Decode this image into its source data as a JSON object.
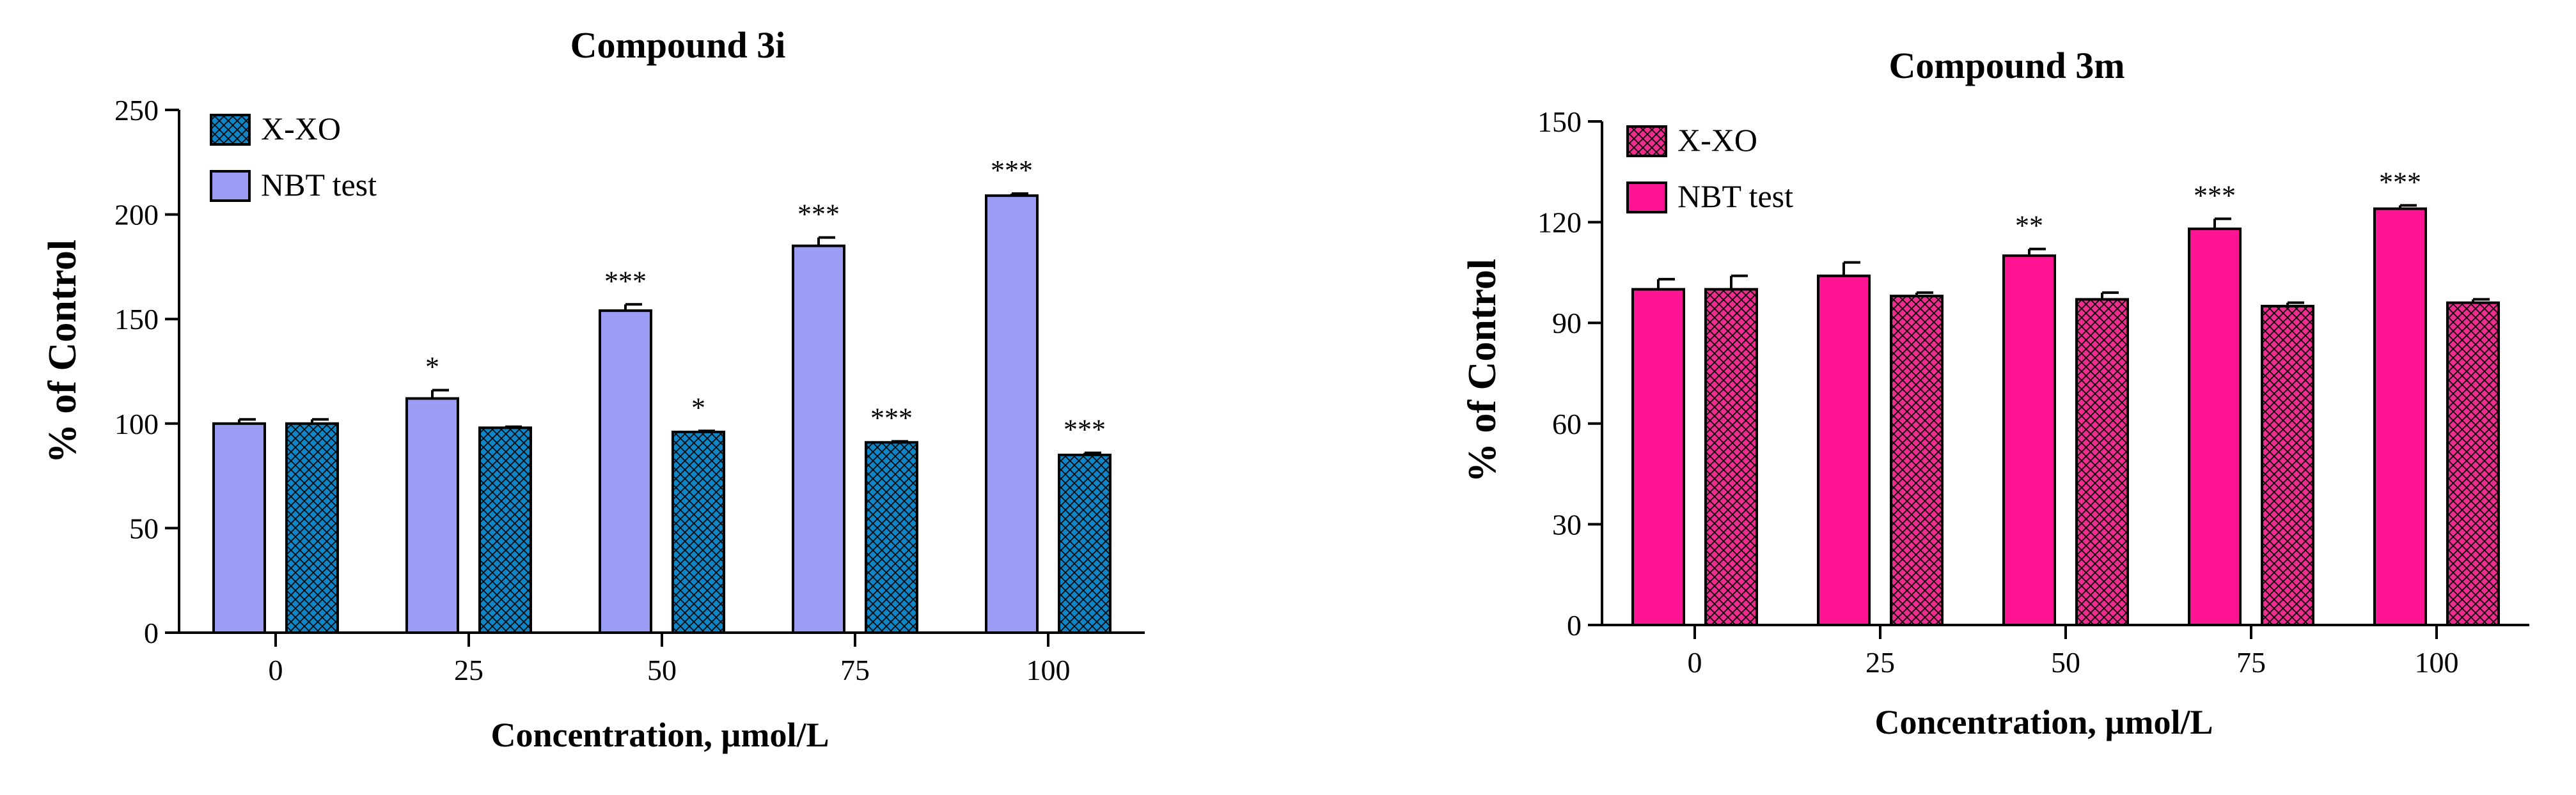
{
  "colors": {
    "p1_nbt": "#9b9df5",
    "p1_xxo": "#0f86c8",
    "p2_nbt": "#ff1493",
    "p2_xxo": "#ee2d8e"
  },
  "chart_data": [
    {
      "type": "bar",
      "title": "Compound 3i",
      "xlabel": "Concentration, µmol/L",
      "ylabel": "% of Control",
      "categories": [
        "0",
        "25",
        "50",
        "75",
        "100"
      ],
      "ylim": [
        0,
        250
      ],
      "yticks": [
        0,
        50,
        100,
        150,
        200,
        250
      ],
      "legend_position": "top-left",
      "series": [
        {
          "name": "NBT test",
          "pattern": "solid",
          "values": [
            100,
            112,
            154,
            185,
            209
          ],
          "errors": [
            2,
            4,
            3,
            4,
            1
          ],
          "labels": [
            "",
            "*",
            "***",
            "***",
            "***"
          ]
        },
        {
          "name": "X-XO",
          "pattern": "crosshatch",
          "values": [
            100,
            98,
            96,
            91,
            85
          ],
          "errors": [
            2,
            0.5,
            0.5,
            0.5,
            1
          ],
          "labels": [
            "",
            "",
            "*",
            "***",
            "***"
          ]
        }
      ]
    },
    {
      "type": "bar",
      "title": "Compound 3m",
      "xlabel": "Concentration, µmol/L",
      "ylabel": "% of Control",
      "categories": [
        "0",
        "25",
        "50",
        "75",
        "100"
      ],
      "ylim": [
        0,
        150
      ],
      "yticks": [
        0,
        30,
        60,
        90,
        120,
        150
      ],
      "legend_position": "top-left",
      "series": [
        {
          "name": "NBT test",
          "pattern": "solid",
          "values": [
            100,
            104,
            110,
            118,
            124
          ],
          "errors": [
            3,
            4,
            2,
            3,
            1
          ],
          "labels": [
            "",
            "",
            "**",
            "***",
            "***"
          ]
        },
        {
          "name": "X-XO",
          "pattern": "crosshatch",
          "values": [
            100,
            98,
            97,
            95,
            96
          ],
          "errors": [
            4,
            1,
            2,
            1,
            1
          ],
          "labels": [
            "",
            "",
            "",
            "",
            ""
          ]
        }
      ]
    }
  ]
}
